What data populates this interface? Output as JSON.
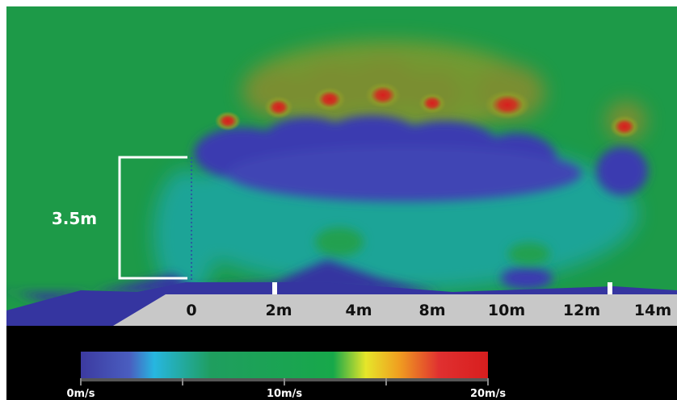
{
  "chart_data": {
    "type": "heatmap",
    "title": "",
    "colorscale": {
      "min": 0,
      "mid": 10,
      "max": 20,
      "unit": "m/s",
      "colors": [
        "#3c3aa0",
        "#4a5ec0",
        "#27b6e0",
        "#1f9e5f",
        "#17a84a",
        "#e6e62a",
        "#f0a020",
        "#e03030",
        "#d81e1e"
      ],
      "labels": [
        "0m/s",
        "10m/s",
        "20m/s"
      ]
    },
    "field_colors": {
      "background": "#1d9a48",
      "high": "#c81e1e",
      "mid": "#8f9a2a",
      "low": "#3a3ab0",
      "transition": "#1fa6a0",
      "ground": "#c8c8c8",
      "ground_dark": "#3535a0"
    },
    "x_axis": {
      "ticks": [
        "0",
        "2m",
        "4m",
        "8m",
        "10m",
        "12m",
        "14m"
      ]
    },
    "annotations": [
      {
        "text": "3.5m",
        "type": "height-bracket"
      }
    ]
  }
}
